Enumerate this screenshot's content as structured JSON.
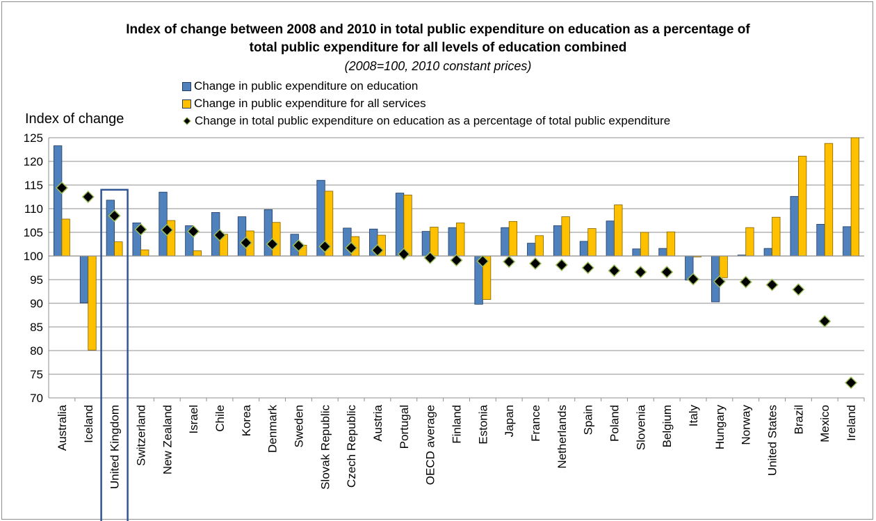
{
  "chart_data": {
    "type": "bar",
    "title_line1": "Index of change between 2008 and 2010 in total public expenditure on education as a percentage of",
    "title_line2": "total public expenditure for all levels of education combined",
    "subtitle": "(2008=100, 2010 constant prices)",
    "ylabel": "Index of change",
    "ylim": [
      70,
      125
    ],
    "yticks": [
      70,
      75,
      80,
      85,
      90,
      95,
      100,
      105,
      110,
      115,
      120,
      125
    ],
    "grid": true,
    "legend_placement": "top",
    "categories": [
      "Australia",
      "Iceland",
      "United Kingdom",
      "Switzerland",
      "New Zealand",
      "Israel",
      "Chile",
      "Korea",
      "Denmark",
      "Sweden",
      "Slovak Republic",
      "Czech Republic",
      "Austria",
      "Portugal",
      "OECD average",
      "Finland",
      "Estonia",
      "Japan",
      "France",
      "Netherlands",
      "Spain",
      "Poland",
      "Slovenia",
      "Belgium",
      "Italy",
      "Hungary",
      "Norway",
      "United States",
      "Brazil",
      "Mexico",
      "Ireland"
    ],
    "highlighted_category": "United Kingdom",
    "series": [
      {
        "name": "Change in public expenditure on education",
        "kind": "bar",
        "color": "#4f81bd",
        "values": [
          123.3,
          90.1,
          111.8,
          107.0,
          113.5,
          106.4,
          109.2,
          108.3,
          109.8,
          104.6,
          116.0,
          105.9,
          105.7,
          113.3,
          105.2,
          106.0,
          89.8,
          106.0,
          102.7,
          106.4,
          103.1,
          107.4,
          101.5,
          101.6,
          94.9,
          90.3,
          100.2,
          101.6,
          112.6,
          106.7,
          106.2
        ]
      },
      {
        "name": "Change in public expenditure for all services",
        "kind": "bar",
        "color": "#ffc000",
        "values": [
          107.8,
          80.1,
          103.0,
          101.3,
          107.5,
          101.1,
          104.6,
          105.3,
          107.1,
          102.3,
          113.7,
          104.1,
          104.4,
          112.9,
          106.1,
          107.0,
          90.8,
          107.3,
          104.3,
          108.3,
          105.8,
          110.8,
          105.0,
          105.1,
          99.8,
          95.4,
          106.0,
          108.2,
          121.1,
          123.8,
          125.0
        ]
      },
      {
        "name": "Change in total public expenditure on education as a percentage of total public expenditure",
        "kind": "marker",
        "color": "#000000",
        "edge_color": "#9bbb59",
        "values": [
          114.4,
          112.5,
          108.5,
          105.6,
          105.5,
          105.2,
          104.4,
          102.8,
          102.5,
          102.2,
          102.0,
          101.7,
          101.2,
          100.4,
          99.6,
          99.1,
          98.9,
          98.8,
          98.4,
          98.1,
          97.5,
          96.9,
          96.6,
          96.6,
          95.1,
          94.6,
          94.5,
          93.9,
          92.9,
          86.2,
          73.2
        ]
      }
    ]
  }
}
